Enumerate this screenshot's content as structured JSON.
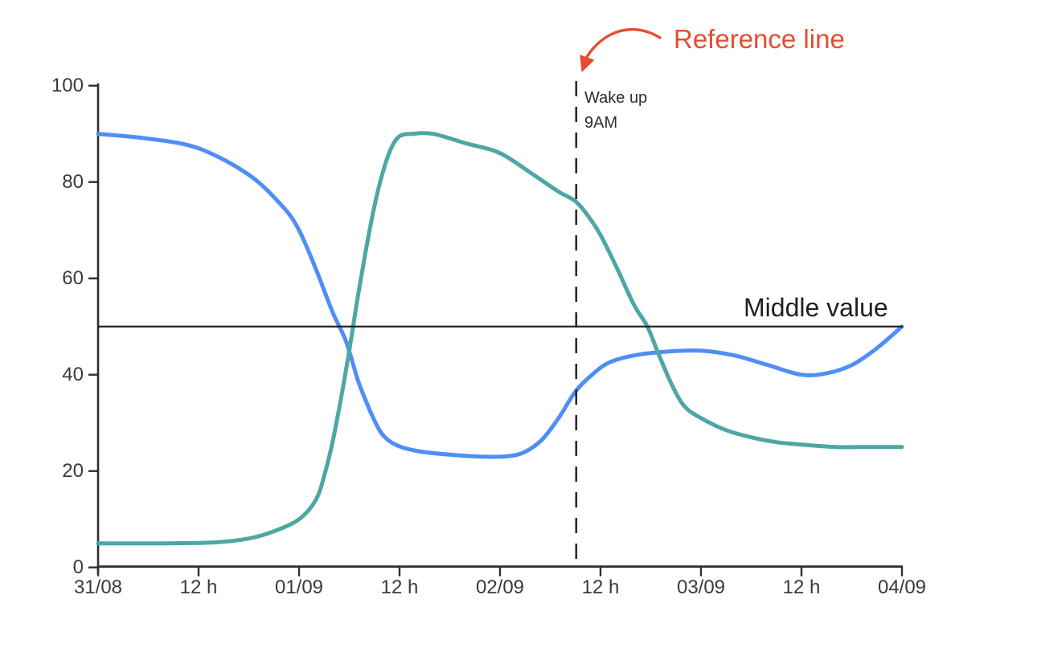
{
  "page": {
    "background": "#ffffff"
  },
  "chart_data": {
    "type": "line",
    "title": "",
    "xlabel": "",
    "ylabel": "",
    "grid": false,
    "legend": "none",
    "x_unit": "hours from 31/08 00:00",
    "x_max": 96,
    "ylim": [
      0,
      100
    ],
    "x_ticks": [
      {
        "t": 0,
        "label": "31/08"
      },
      {
        "t": 12,
        "label": "12 h"
      },
      {
        "t": 24,
        "label": "01/09"
      },
      {
        "t": 36,
        "label": "12 h"
      },
      {
        "t": 48,
        "label": "02/09"
      },
      {
        "t": 60,
        "label": "12 h"
      },
      {
        "t": 72,
        "label": "03/09"
      },
      {
        "t": 84,
        "label": "12 h"
      },
      {
        "t": 96,
        "label": "04/09"
      }
    ],
    "y_ticks": [
      {
        "v": 0,
        "label": "0"
      },
      {
        "v": 20,
        "label": "20"
      },
      {
        "v": 40,
        "label": "40"
      },
      {
        "v": 60,
        "label": "60"
      },
      {
        "v": 80,
        "label": "80"
      },
      {
        "v": 100,
        "label": "100"
      }
    ],
    "series": [
      {
        "name": "blue-series",
        "color": "#4f8ef4",
        "points": [
          [
            0,
            90
          ],
          [
            6,
            89
          ],
          [
            12,
            87
          ],
          [
            18,
            81.5
          ],
          [
            22,
            75
          ],
          [
            24,
            70
          ],
          [
            26,
            62
          ],
          [
            28,
            53
          ],
          [
            29.6,
            47
          ],
          [
            31,
            39
          ],
          [
            32,
            34.5
          ],
          [
            33,
            30.5
          ],
          [
            34,
            27.5
          ],
          [
            35.5,
            25.5
          ],
          [
            38,
            24.2
          ],
          [
            42,
            23.4
          ],
          [
            46,
            23
          ],
          [
            49,
            23.1
          ],
          [
            51,
            24
          ],
          [
            53,
            26.5
          ],
          [
            55,
            31
          ],
          [
            57,
            36.5
          ],
          [
            59,
            40
          ],
          [
            61,
            42.5
          ],
          [
            64,
            44
          ],
          [
            68,
            44.8
          ],
          [
            72,
            45
          ],
          [
            76,
            44
          ],
          [
            80,
            42
          ],
          [
            84,
            40
          ],
          [
            87,
            40.3
          ],
          [
            90,
            42
          ],
          [
            93,
            45.5
          ],
          [
            96,
            50
          ]
        ]
      },
      {
        "name": "teal-series",
        "color": "#4da7a4",
        "points": [
          [
            0,
            5
          ],
          [
            8,
            5
          ],
          [
            14,
            5.2
          ],
          [
            18,
            6
          ],
          [
            21,
            7.5
          ],
          [
            24,
            10
          ],
          [
            26,
            14
          ],
          [
            27,
            19
          ],
          [
            28,
            26
          ],
          [
            29,
            35
          ],
          [
            30,
            45
          ],
          [
            31,
            56
          ],
          [
            32,
            66
          ],
          [
            33,
            75
          ],
          [
            34,
            82
          ],
          [
            35,
            87
          ],
          [
            36,
            89.5
          ],
          [
            37.5,
            90
          ],
          [
            40,
            90
          ],
          [
            44,
            88
          ],
          [
            48,
            86
          ],
          [
            52,
            81.5
          ],
          [
            55,
            78
          ],
          [
            57,
            76
          ],
          [
            58.5,
            73
          ],
          [
            60,
            69
          ],
          [
            62,
            62
          ],
          [
            64,
            54.5
          ],
          [
            65.6,
            50
          ],
          [
            67,
            44
          ],
          [
            68.5,
            38
          ],
          [
            70,
            33.5
          ],
          [
            72,
            31
          ],
          [
            75,
            28.5
          ],
          [
            78,
            27
          ],
          [
            81,
            26
          ],
          [
            84,
            25.5
          ],
          [
            88,
            25
          ],
          [
            92,
            25
          ],
          [
            96,
            25
          ]
        ]
      }
    ],
    "annotations": {
      "middle_line": {
        "y": 50,
        "label": "Middle value",
        "color": "#1c1c1c"
      },
      "reference_line": {
        "t": 57.1,
        "label_line1": "Wake up",
        "label_line2": "9AM",
        "color": "#2a2a2a"
      },
      "callout": {
        "label": "Reference line",
        "color": "#e74c30"
      }
    },
    "axis_color": "#2e2e2e"
  }
}
